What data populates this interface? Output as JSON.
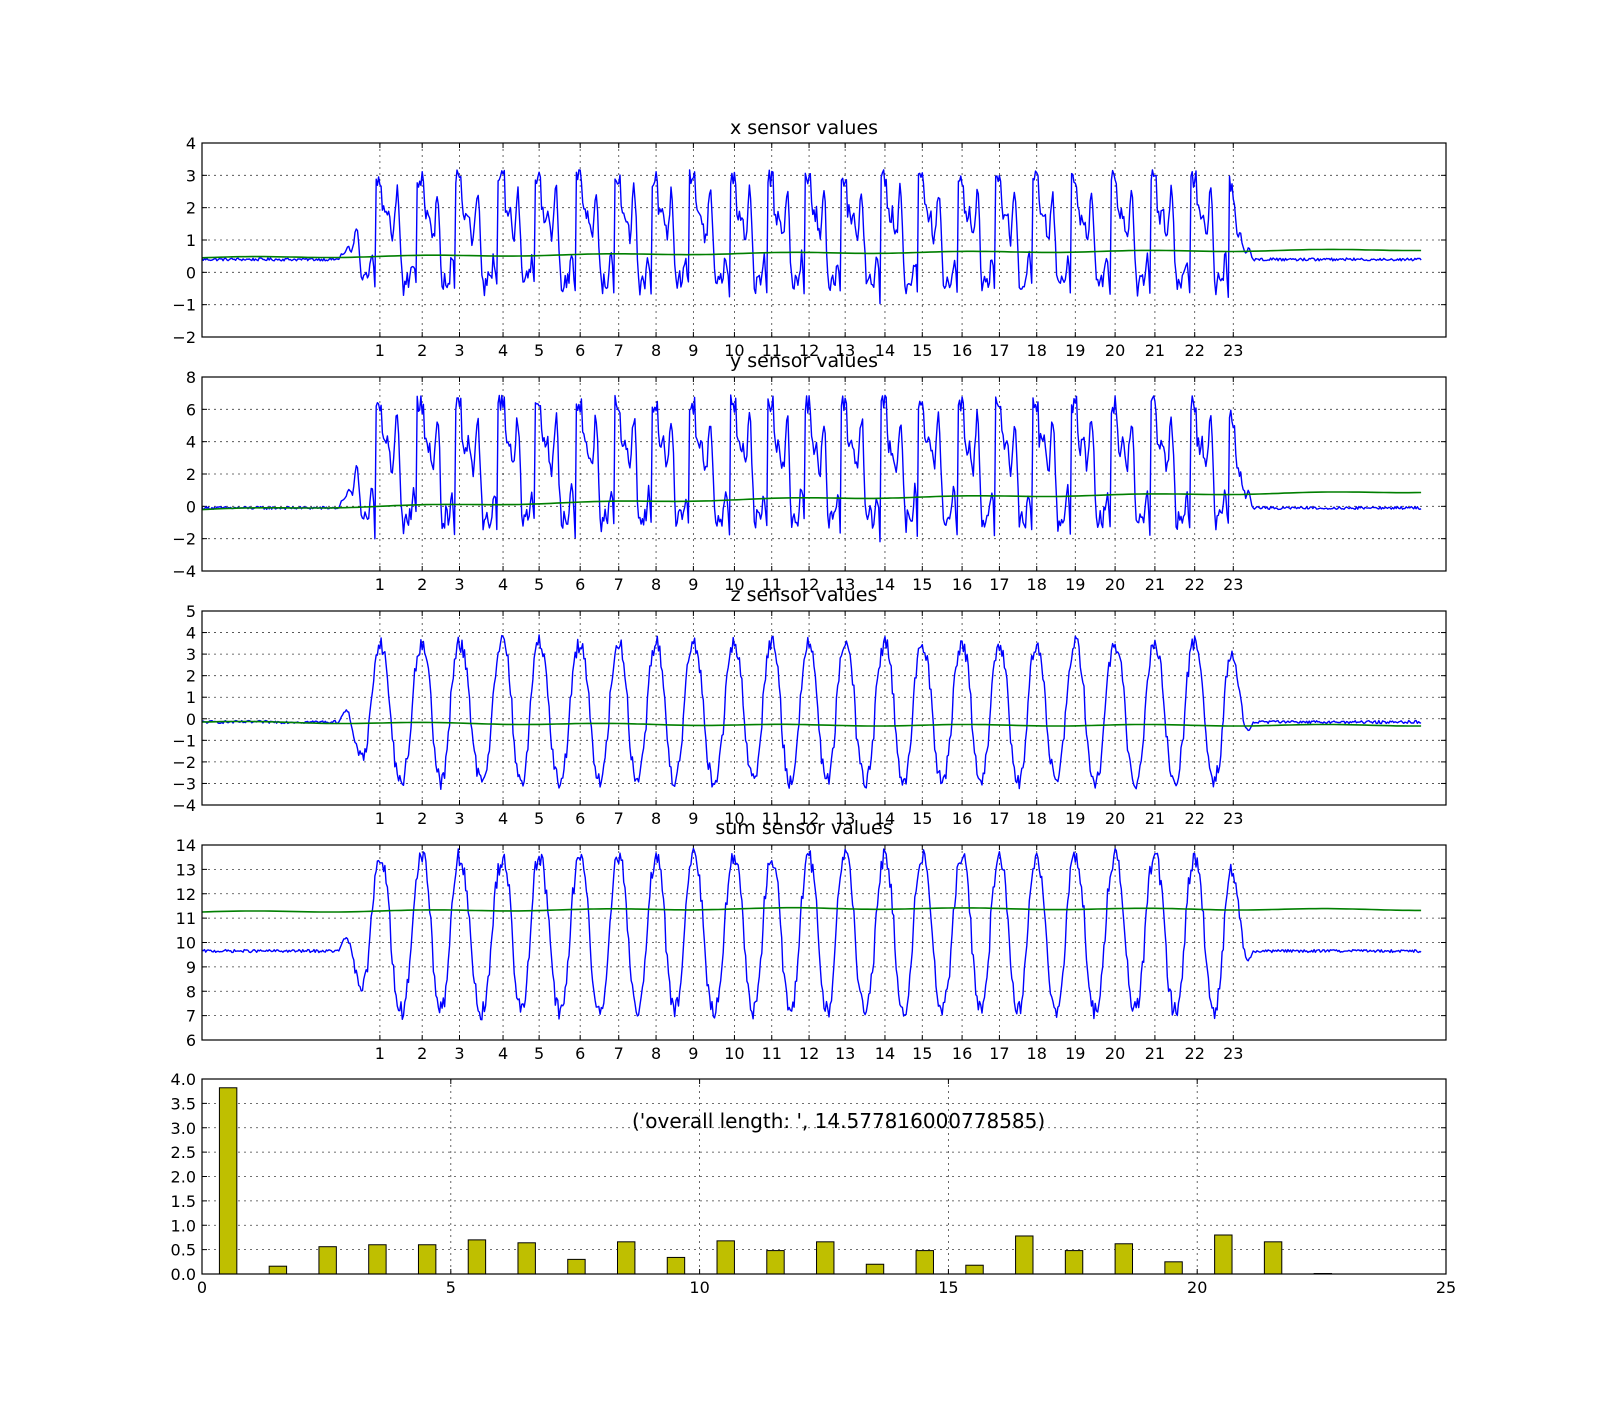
{
  "chart_data": [
    {
      "type": "line",
      "title": "x sensor values",
      "ylim": [
        -2,
        4
      ],
      "yticks": [
        4,
        3,
        2,
        1,
        0,
        -1,
        -2
      ],
      "ytick_labels": [
        "4",
        "3",
        "2",
        "1",
        "0",
        "−1",
        "−2"
      ],
      "xlim": [
        0,
        1000
      ],
      "grid": true,
      "marker_positions": [
        143,
        177,
        207,
        242,
        271,
        304,
        335,
        365,
        395,
        428,
        458,
        488,
        517,
        549,
        579,
        611,
        641,
        671,
        702,
        734,
        766,
        798,
        829
      ],
      "marker_labels": [
        "1",
        "2",
        "3",
        "4",
        "5",
        "6",
        "7",
        "8",
        "9",
        "10",
        "11",
        "12",
        "13",
        "14",
        "15",
        "16",
        "17",
        "18",
        "19",
        "20",
        "21",
        "22",
        "23"
      ],
      "baseline": 0.4,
      "active_min": -1.4,
      "active_max": 2.9,
      "green_start": 0.45,
      "green_mid": 0.6,
      "green_end": 0.7,
      "sum_sensor": false,
      "colors": {
        "signal": "#0000ff",
        "mean": "#007f00"
      }
    },
    {
      "type": "line",
      "title": "y sensor values",
      "ylim": [
        -4,
        8
      ],
      "yticks": [
        8,
        6,
        4,
        2,
        0,
        -2,
        -4
      ],
      "ytick_labels": [
        "8",
        "6",
        "4",
        "2",
        "0",
        "−2",
        "−4"
      ],
      "xlim": [
        0,
        1000
      ],
      "grid": true,
      "marker_positions": [
        143,
        177,
        207,
        242,
        271,
        304,
        335,
        365,
        395,
        428,
        458,
        488,
        517,
        549,
        579,
        611,
        641,
        671,
        702,
        734,
        766,
        798,
        829
      ],
      "marker_labels": [
        "1",
        "2",
        "3",
        "4",
        "5",
        "6",
        "7",
        "8",
        "9",
        "10",
        "11",
        "12",
        "13",
        "14",
        "15",
        "16",
        "17",
        "18",
        "19",
        "20",
        "21",
        "22",
        "23"
      ],
      "baseline": -0.1,
      "active_min": -3.2,
      "active_max": 6.3,
      "green_start": -0.2,
      "green_mid": 0.5,
      "green_end": 0.9,
      "sum_sensor": false,
      "colors": {
        "signal": "#0000ff",
        "mean": "#007f00"
      }
    },
    {
      "type": "line",
      "title": "z sensor values",
      "ylim": [
        -4,
        5
      ],
      "yticks": [
        5,
        4,
        3,
        2,
        1,
        0,
        -1,
        -2,
        -3,
        -4
      ],
      "ytick_labels": [
        "5",
        "4",
        "3",
        "2",
        "1",
        "0",
        "−1",
        "−2",
        "−3",
        "−4"
      ],
      "xlim": [
        0,
        1000
      ],
      "grid": true,
      "marker_positions": [
        143,
        177,
        207,
        242,
        271,
        304,
        335,
        365,
        395,
        428,
        458,
        488,
        517,
        549,
        579,
        611,
        641,
        671,
        702,
        734,
        766,
        798,
        829
      ],
      "marker_labels": [
        "1",
        "2",
        "3",
        "4",
        "5",
        "6",
        "7",
        "8",
        "9",
        "10",
        "11",
        "12",
        "13",
        "14",
        "15",
        "16",
        "17",
        "18",
        "19",
        "20",
        "21",
        "22",
        "23"
      ],
      "baseline": -0.15,
      "active_min": -2.9,
      "active_max": 3.5,
      "green_start": -0.15,
      "green_mid": -0.3,
      "green_end": -0.3,
      "sum_sensor": false,
      "colors": {
        "signal": "#0000ff",
        "mean": "#007f00"
      }
    },
    {
      "type": "line",
      "title": "sum sensor values",
      "ylim": [
        6,
        14
      ],
      "yticks": [
        14,
        13,
        12,
        11,
        10,
        9,
        8,
        7,
        6
      ],
      "ytick_labels": [
        "14",
        "13",
        "12",
        "11",
        "10",
        "9",
        "8",
        "7",
        "6"
      ],
      "xlim": [
        0,
        1000
      ],
      "grid": true,
      "marker_positions": [
        143,
        177,
        207,
        242,
        271,
        304,
        335,
        365,
        395,
        428,
        458,
        488,
        517,
        549,
        579,
        611,
        641,
        671,
        702,
        734,
        766,
        798,
        829
      ],
      "marker_labels": [
        "1",
        "2",
        "3",
        "4",
        "5",
        "6",
        "7",
        "8",
        "9",
        "10",
        "11",
        "12",
        "13",
        "14",
        "15",
        "16",
        "17",
        "18",
        "19",
        "20",
        "21",
        "22",
        "23"
      ],
      "baseline": 9.65,
      "active_min": 7.2,
      "active_max": 13.5,
      "green_start": 11.25,
      "green_mid": 11.4,
      "green_end": 11.35,
      "sum_sensor": true,
      "colors": {
        "signal": "#0000ff",
        "mean": "#007f00"
      }
    },
    {
      "type": "bar",
      "title": "",
      "annotation": "('overall length: ', 14.577816000778585)",
      "xlim": [
        0,
        25
      ],
      "xticks": [
        0,
        5,
        10,
        15,
        20,
        25
      ],
      "ylim": [
        0,
        4.0
      ],
      "yticks": [
        4.0,
        3.5,
        3.0,
        2.5,
        2.0,
        1.5,
        1.0,
        0.5,
        0.0
      ],
      "ytick_labels": [
        "4.0",
        "3.5",
        "3.0",
        "2.5",
        "2.0",
        "1.5",
        "1.0",
        "0.5",
        "0.0"
      ],
      "grid": true,
      "bar_width": 0.35,
      "x": [
        0,
        1,
        2,
        3,
        4,
        5,
        6,
        7,
        8,
        9,
        10,
        11,
        12,
        13,
        14,
        15,
        16,
        17,
        18,
        19,
        20,
        21,
        22
      ],
      "values": [
        3.82,
        0.16,
        0.56,
        0.6,
        0.6,
        0.7,
        0.64,
        0.3,
        0.66,
        0.34,
        0.68,
        0.48,
        0.66,
        0.2,
        0.48,
        0.18,
        0.78,
        0.48,
        0.62,
        0.25,
        0.8,
        0.66,
        0.01
      ],
      "colors": {
        "bar": "#bfbf00",
        "edge": "#000000"
      }
    }
  ]
}
